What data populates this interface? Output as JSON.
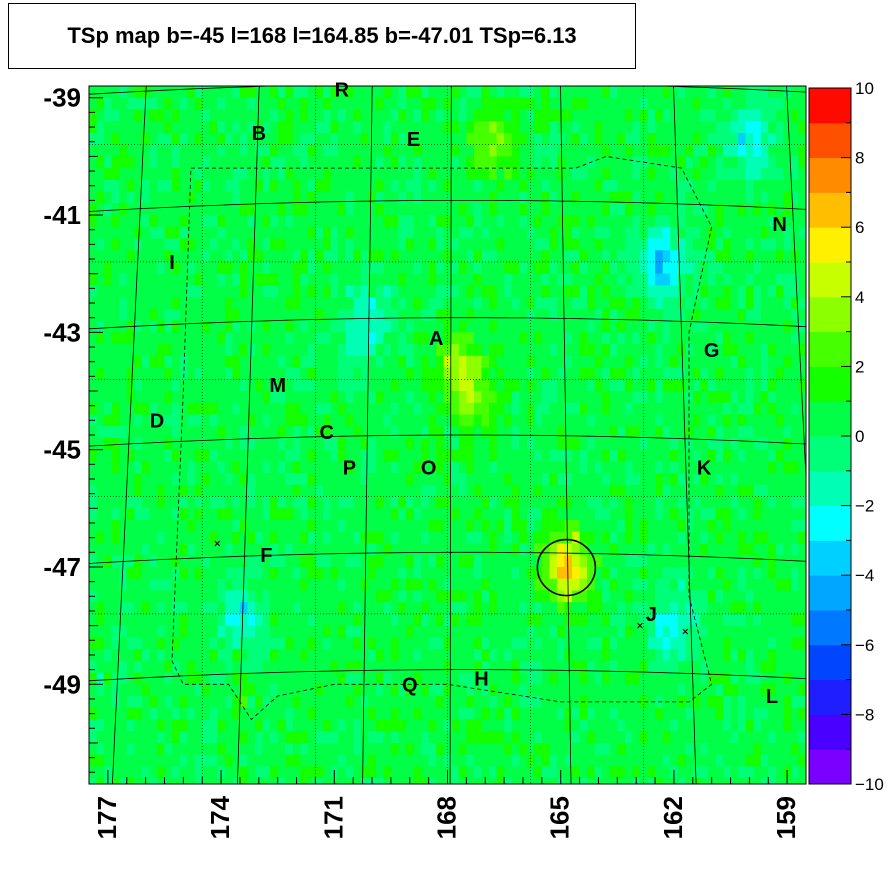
{
  "chart_data": {
    "type": "heatmap",
    "title": "TSp map b=-45 l=168 l=164.85 b=-47.01 TSp=6.13",
    "x_axis": {
      "range": [
        177.5,
        158.5
      ],
      "ticks": [
        "177",
        "174",
        "171",
        "168",
        "165",
        "162",
        "159"
      ],
      "reversed": true
    },
    "y_axis": {
      "range": [
        -50.7,
        -38.8
      ],
      "ticks": [
        "-39",
        "-41",
        "-43",
        "-45",
        "-47",
        "-49"
      ]
    },
    "colorbar": {
      "range": [
        -10,
        10
      ],
      "ticks": [
        "10",
        "8",
        "6",
        "4",
        "2",
        "0",
        "−2",
        "−4",
        "−6",
        "−8",
        "−10"
      ]
    },
    "background_level": 0.5,
    "hotspots": [
      {
        "l": 164.85,
        "b": -47.01,
        "tsp": 6.13
      },
      {
        "l": 167.7,
        "b": -43.6,
        "tsp": 3.5
      },
      {
        "l": 166.8,
        "b": -39.8,
        "tsp": 3.0
      },
      {
        "l": 167.2,
        "b": -44.2,
        "tsp": 2.8
      }
    ],
    "cold_spots": [
      {
        "l": 162.3,
        "b": -41.8,
        "tsp": -3.5
      },
      {
        "l": 160.0,
        "b": -39.7,
        "tsp": -2.5
      },
      {
        "l": 162.0,
        "b": -48.0,
        "tsp": -2.5
      },
      {
        "l": 173.5,
        "b": -47.8,
        "tsp": -2.0
      },
      {
        "l": 170.2,
        "b": -42.9,
        "tsp": -2.0
      }
    ],
    "source_circle": {
      "l": 164.85,
      "b": -47.01
    },
    "cross_markers": [
      {
        "l": 174.1,
        "b": -46.6
      },
      {
        "l": 162.9,
        "b": -48.0
      },
      {
        "l": 161.7,
        "b": -48.1
      }
    ],
    "region_labels": [
      {
        "text": "R",
        "l": 170.8,
        "b": -38.86
      },
      {
        "text": "B",
        "l": 173.0,
        "b": -39.6
      },
      {
        "text": "E",
        "l": 168.9,
        "b": -39.7
      },
      {
        "text": "N",
        "l": 159.2,
        "b": -41.15
      },
      {
        "text": "I",
        "l": 175.3,
        "b": -41.8
      },
      {
        "text": "A",
        "l": 168.3,
        "b": -43.1
      },
      {
        "text": "G",
        "l": 161.0,
        "b": -43.3
      },
      {
        "text": "M",
        "l": 172.5,
        "b": -43.9
      },
      {
        "text": "D",
        "l": 175.7,
        "b": -44.5
      },
      {
        "text": "C",
        "l": 171.2,
        "b": -44.7
      },
      {
        "text": "P",
        "l": 170.6,
        "b": -45.3
      },
      {
        "text": "O",
        "l": 168.5,
        "b": -45.3
      },
      {
        "text": "K",
        "l": 161.2,
        "b": -45.3
      },
      {
        "text": "F",
        "l": 172.8,
        "b": -46.8
      },
      {
        "text": "J",
        "l": 162.6,
        "b": -47.8
      },
      {
        "text": "Q",
        "l": 169.0,
        "b": -49.0
      },
      {
        "text": "H",
        "l": 167.1,
        "b": -48.9
      },
      {
        "text": "L",
        "l": 159.4,
        "b": -49.2
      }
    ]
  }
}
